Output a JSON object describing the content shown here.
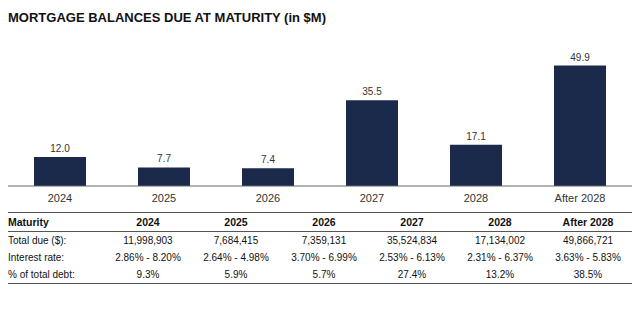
{
  "chart_data": {
    "type": "bar",
    "title": "MORTGAGE BALANCES DUE AT MATURITY (in $M)",
    "categories": [
      "2024",
      "2025",
      "2026",
      "2027",
      "2028",
      "After 2028"
    ],
    "values": [
      12.0,
      7.7,
      7.4,
      35.5,
      17.1,
      49.9
    ],
    "value_labels": [
      "12.0",
      "7.7",
      "7.4",
      "35.5",
      "17.1",
      "49.9"
    ],
    "color": "#1b2a4a",
    "ylim": [
      0,
      58
    ],
    "grid": false,
    "data_labels": true,
    "tick_labels": "x",
    "table": {
      "header_label": "Maturity",
      "col_labels": [
        "2024",
        "2025",
        "2026",
        "2027",
        "2028",
        "After 2028"
      ],
      "rows": [
        {
          "label": "Total due ($):",
          "values": [
            "11,998,903",
            "7,684,415",
            "7,359,131",
            "35,524,834",
            "17,134,002",
            "49,866,721"
          ]
        },
        {
          "label": "Interest rate:",
          "values": [
            "2.86% - 8.20%",
            "2.64% - 4.98%",
            "3.70% - 6.99%",
            "2.53% - 6.13%",
            "2.31% - 6.37%",
            "3.63% - 5.83%"
          ]
        },
        {
          "label": "% of total debt:",
          "values": [
            "9.3%",
            "5.9%",
            "5.7%",
            "27.4%",
            "13.2%",
            "38.5%"
          ]
        }
      ]
    }
  }
}
